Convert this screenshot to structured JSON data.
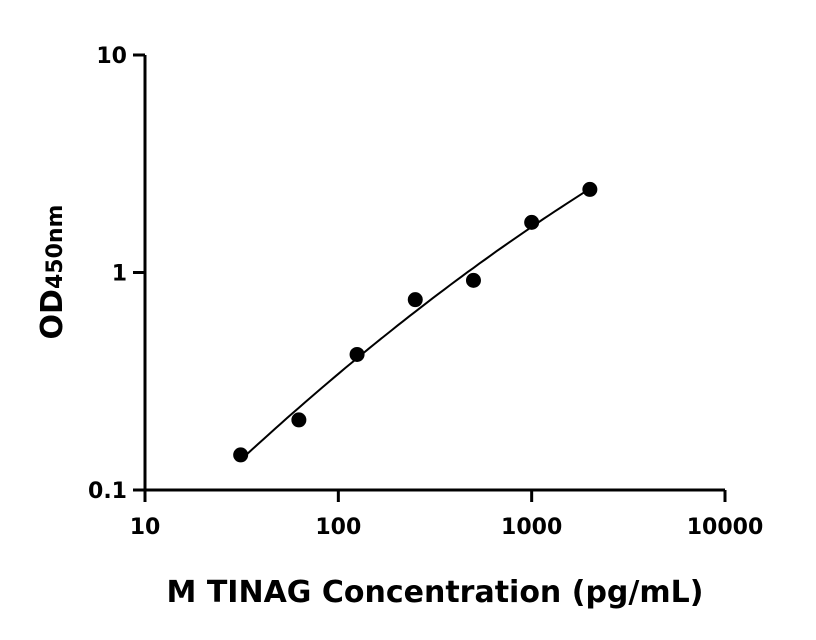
{
  "chart_data": {
    "type": "scatter",
    "title": "",
    "xlabel": "M TINAG Concentration (pg/mL)",
    "ylabel_main": "OD",
    "ylabel_sub": "450nm",
    "xscale": "log",
    "yscale": "log",
    "xlim": [
      10,
      10000
    ],
    "ylim": [
      0.1,
      10
    ],
    "xticks": [
      "10",
      "100",
      "1000",
      "10000"
    ],
    "yticks": [
      "0.1",
      "1",
      "10"
    ],
    "grid": false,
    "legend": "none",
    "fit_line": true,
    "marker_color": "#000000",
    "points": [
      {
        "x": 31.25,
        "y": 0.145
      },
      {
        "x": 62.5,
        "y": 0.21
      },
      {
        "x": 125,
        "y": 0.42
      },
      {
        "x": 250,
        "y": 0.75
      },
      {
        "x": 500,
        "y": 0.92
      },
      {
        "x": 1000,
        "y": 1.7
      },
      {
        "x": 2000,
        "y": 2.41
      }
    ]
  }
}
